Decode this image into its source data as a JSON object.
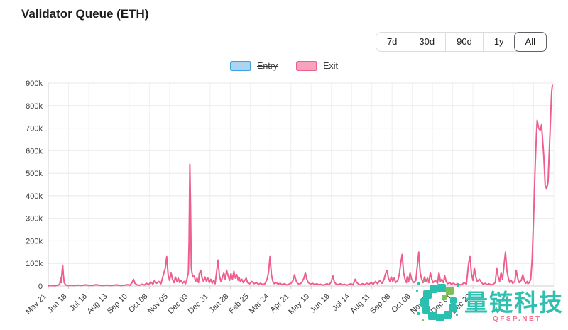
{
  "header": {
    "title": "Validator Queue (ETH)"
  },
  "toolbar": {
    "ranges": [
      "7d",
      "30d",
      "90d",
      "1y",
      "All"
    ],
    "selected": "All"
  },
  "legend": [
    {
      "label": "Entry",
      "border_color": "#3da2dd",
      "fill_color": "#a9d5f2",
      "disabled": true
    },
    {
      "label": "Exit",
      "border_color": "#ee5f8d",
      "fill_color": "#f8a3bd",
      "disabled": false
    }
  ],
  "watermark": {
    "text": "量链科技",
    "subtext": "QFSP.NET",
    "text_color": "#2fc0b0",
    "subtext_color": "#f4728f",
    "logo_teal": "#2abfae",
    "logo_green": "#7cc05a"
  },
  "chart_data": {
    "type": "line",
    "title": "Validator Queue (ETH)",
    "xlabel": "",
    "ylabel": "",
    "grid": true,
    "legend_position": "top",
    "y_unit": "k = thousands",
    "ylim_k": [
      0,
      900
    ],
    "y_ticks": [
      "0",
      "100k",
      "200k",
      "300k",
      "400k",
      "500k",
      "600k",
      "700k",
      "800k",
      "900k"
    ],
    "x_tick_labels": [
      "May 21",
      "Jun 18",
      "Jul 16",
      "Aug 13",
      "Sep 10",
      "Oct 08",
      "Nov 05",
      "Dec 03",
      "Dec 31",
      "Jan 28",
      "Feb 25",
      "Mar 24",
      "Apr 21",
      "May 19",
      "Jun 16",
      "Jul 14",
      "Aug 11",
      "Sep 08",
      "Oct 06",
      "Nov 03",
      "Dec 01",
      "Dec 29"
    ],
    "x_total_ticks": 26,
    "x_tick_interval_days": 28,
    "x_range_days": [
      0,
      700
    ],
    "series": [
      {
        "name": "Entry",
        "color": "#3da2dd",
        "visible": false,
        "points": []
      },
      {
        "name": "Exit",
        "color": "#ee5f8d",
        "visible": true,
        "points": [
          [
            0,
            1
          ],
          [
            5,
            2
          ],
          [
            10,
            1
          ],
          [
            14,
            4
          ],
          [
            16,
            10
          ],
          [
            17,
            38
          ],
          [
            18,
            15
          ],
          [
            19,
            60
          ],
          [
            20,
            92
          ],
          [
            21,
            45
          ],
          [
            22,
            15
          ],
          [
            24,
            5
          ],
          [
            27,
            2
          ],
          [
            31,
            3
          ],
          [
            36,
            2
          ],
          [
            41,
            4
          ],
          [
            46,
            2
          ],
          [
            51,
            5
          ],
          [
            56,
            3
          ],
          [
            61,
            2
          ],
          [
            66,
            6
          ],
          [
            71,
            3
          ],
          [
            76,
            2
          ],
          [
            81,
            4
          ],
          [
            86,
            2
          ],
          [
            90,
            3
          ],
          [
            95,
            5
          ],
          [
            100,
            2
          ],
          [
            105,
            3
          ],
          [
            110,
            6
          ],
          [
            113,
            3
          ],
          [
            116,
            15
          ],
          [
            118,
            30
          ],
          [
            120,
            12
          ],
          [
            123,
            5
          ],
          [
            126,
            3
          ],
          [
            130,
            8
          ],
          [
            133,
            4
          ],
          [
            136,
            12
          ],
          [
            139,
            6
          ],
          [
            142,
            18
          ],
          [
            145,
            8
          ],
          [
            147,
            25
          ],
          [
            150,
            12
          ],
          [
            153,
            20
          ],
          [
            156,
            10
          ],
          [
            159,
            45
          ],
          [
            162,
            80
          ],
          [
            164,
            130
          ],
          [
            166,
            50
          ],
          [
            168,
            25
          ],
          [
            170,
            60
          ],
          [
            172,
            30
          ],
          [
            174,
            15
          ],
          [
            176,
            40
          ],
          [
            178,
            20
          ],
          [
            180,
            35
          ],
          [
            182,
            15
          ],
          [
            184,
            25
          ],
          [
            186,
            12
          ],
          [
            188,
            20
          ],
          [
            190,
            10
          ],
          [
            192,
            30
          ],
          [
            194,
            60
          ],
          [
            195,
            200
          ],
          [
            196,
            540
          ],
          [
            197,
            350
          ],
          [
            198,
            80
          ],
          [
            200,
            40
          ],
          [
            202,
            45
          ],
          [
            204,
            20
          ],
          [
            206,
            35
          ],
          [
            208,
            15
          ],
          [
            209,
            55
          ],
          [
            211,
            70
          ],
          [
            213,
            35
          ],
          [
            215,
            20
          ],
          [
            217,
            40
          ],
          [
            219,
            20
          ],
          [
            221,
            35
          ],
          [
            223,
            15
          ],
          [
            225,
            30
          ],
          [
            227,
            12
          ],
          [
            229,
            25
          ],
          [
            231,
            10
          ],
          [
            233,
            60
          ],
          [
            235,
            115
          ],
          [
            237,
            45
          ],
          [
            239,
            20
          ],
          [
            241,
            35
          ],
          [
            243,
            60
          ],
          [
            245,
            30
          ],
          [
            247,
            70
          ],
          [
            249,
            45
          ],
          [
            251,
            25
          ],
          [
            253,
            55
          ],
          [
            255,
            30
          ],
          [
            257,
            65
          ],
          [
            259,
            35
          ],
          [
            261,
            50
          ],
          [
            263,
            25
          ],
          [
            264,
            40
          ],
          [
            266,
            20
          ],
          [
            268,
            30
          ],
          [
            270,
            15
          ],
          [
            272,
            25
          ],
          [
            274,
            35
          ],
          [
            276,
            15
          ],
          [
            279,
            10
          ],
          [
            282,
            20
          ],
          [
            285,
            10
          ],
          [
            288,
            15
          ],
          [
            291,
            8
          ],
          [
            294,
            12
          ],
          [
            297,
            6
          ],
          [
            300,
            10
          ],
          [
            303,
            30
          ],
          [
            305,
            60
          ],
          [
            307,
            130
          ],
          [
            309,
            50
          ],
          [
            311,
            20
          ],
          [
            313,
            10
          ],
          [
            316,
            15
          ],
          [
            318,
            8
          ],
          [
            321,
            12
          ],
          [
            324,
            6
          ],
          [
            327,
            10
          ],
          [
            330,
            5
          ],
          [
            333,
            8
          ],
          [
            336,
            12
          ],
          [
            339,
            25
          ],
          [
            341,
            50
          ],
          [
            343,
            25
          ],
          [
            345,
            12
          ],
          [
            348,
            8
          ],
          [
            351,
            15
          ],
          [
            354,
            35
          ],
          [
            356,
            60
          ],
          [
            358,
            30
          ],
          [
            360,
            15
          ],
          [
            363,
            8
          ],
          [
            366,
            12
          ],
          [
            369,
            6
          ],
          [
            372,
            10
          ],
          [
            375,
            5
          ],
          [
            377,
            8
          ],
          [
            380,
            4
          ],
          [
            383,
            6
          ],
          [
            386,
            10
          ],
          [
            389,
            5
          ],
          [
            392,
            20
          ],
          [
            394,
            45
          ],
          [
            396,
            20
          ],
          [
            398,
            10
          ],
          [
            401,
            6
          ],
          [
            404,
            10
          ],
          [
            407,
            5
          ],
          [
            410,
            8
          ],
          [
            413,
            4
          ],
          [
            416,
            6
          ],
          [
            419,
            10
          ],
          [
            422,
            5
          ],
          [
            425,
            30
          ],
          [
            427,
            15
          ],
          [
            430,
            8
          ],
          [
            432,
            5
          ],
          [
            435,
            10
          ],
          [
            438,
            6
          ],
          [
            441,
            12
          ],
          [
            444,
            8
          ],
          [
            447,
            15
          ],
          [
            450,
            8
          ],
          [
            453,
            20
          ],
          [
            456,
            10
          ],
          [
            459,
            25
          ],
          [
            462,
            12
          ],
          [
            465,
            30
          ],
          [
            467,
            55
          ],
          [
            469,
            70
          ],
          [
            471,
            35
          ],
          [
            473,
            20
          ],
          [
            475,
            40
          ],
          [
            477,
            20
          ],
          [
            479,
            35
          ],
          [
            481,
            15
          ],
          [
            484,
            25
          ],
          [
            486,
            50
          ],
          [
            488,
            100
          ],
          [
            490,
            140
          ],
          [
            492,
            60
          ],
          [
            494,
            30
          ],
          [
            496,
            15
          ],
          [
            497,
            40
          ],
          [
            499,
            20
          ],
          [
            501,
            60
          ],
          [
            503,
            30
          ],
          [
            506,
            15
          ],
          [
            509,
            25
          ],
          [
            511,
            90
          ],
          [
            513,
            150
          ],
          [
            515,
            60
          ],
          [
            517,
            30
          ],
          [
            519,
            15
          ],
          [
            521,
            40
          ],
          [
            523,
            20
          ],
          [
            525,
            35
          ],
          [
            527,
            15
          ],
          [
            529,
            60
          ],
          [
            531,
            30
          ],
          [
            533,
            15
          ],
          [
            536,
            25
          ],
          [
            539,
            12
          ],
          [
            541,
            60
          ],
          [
            543,
            20
          ],
          [
            545,
            30
          ],
          [
            547,
            15
          ],
          [
            549,
            45
          ],
          [
            551,
            20
          ],
          [
            553,
            10
          ],
          [
            556,
            15
          ],
          [
            558,
            8
          ],
          [
            561,
            12
          ],
          [
            564,
            6
          ],
          [
            567,
            10
          ],
          [
            570,
            5
          ],
          [
            573,
            8
          ],
          [
            576,
            15
          ],
          [
            579,
            8
          ],
          [
            582,
            100
          ],
          [
            584,
            130
          ],
          [
            586,
            55
          ],
          [
            588,
            25
          ],
          [
            590,
            80
          ],
          [
            592,
            40
          ],
          [
            594,
            20
          ],
          [
            597,
            30
          ],
          [
            600,
            15
          ],
          [
            602,
            8
          ],
          [
            605,
            12
          ],
          [
            608,
            6
          ],
          [
            610,
            10
          ],
          [
            613,
            5
          ],
          [
            616,
            8
          ],
          [
            619,
            15
          ],
          [
            621,
            80
          ],
          [
            623,
            40
          ],
          [
            625,
            20
          ],
          [
            627,
            60
          ],
          [
            629,
            30
          ],
          [
            631,
            90
          ],
          [
            633,
            150
          ],
          [
            635,
            70
          ],
          [
            637,
            35
          ],
          [
            639,
            15
          ],
          [
            641,
            25
          ],
          [
            643,
            12
          ],
          [
            646,
            20
          ],
          [
            648,
            70
          ],
          [
            650,
            35
          ],
          [
            652,
            15
          ],
          [
            655,
            25
          ],
          [
            657,
            50
          ],
          [
            659,
            25
          ],
          [
            661,
            12
          ],
          [
            663,
            20
          ],
          [
            664,
            10
          ],
          [
            666,
            15
          ],
          [
            668,
            30
          ],
          [
            670,
            120
          ],
          [
            672,
            300
          ],
          [
            674,
            520
          ],
          [
            676,
            680
          ],
          [
            677,
            735
          ],
          [
            679,
            700
          ],
          [
            681,
            690
          ],
          [
            683,
            715
          ],
          [
            686,
            580
          ],
          [
            688,
            450
          ],
          [
            690,
            430
          ],
          [
            692,
            460
          ],
          [
            694,
            620
          ],
          [
            696,
            780
          ],
          [
            697,
            860
          ],
          [
            698,
            890
          ]
        ]
      }
    ]
  }
}
